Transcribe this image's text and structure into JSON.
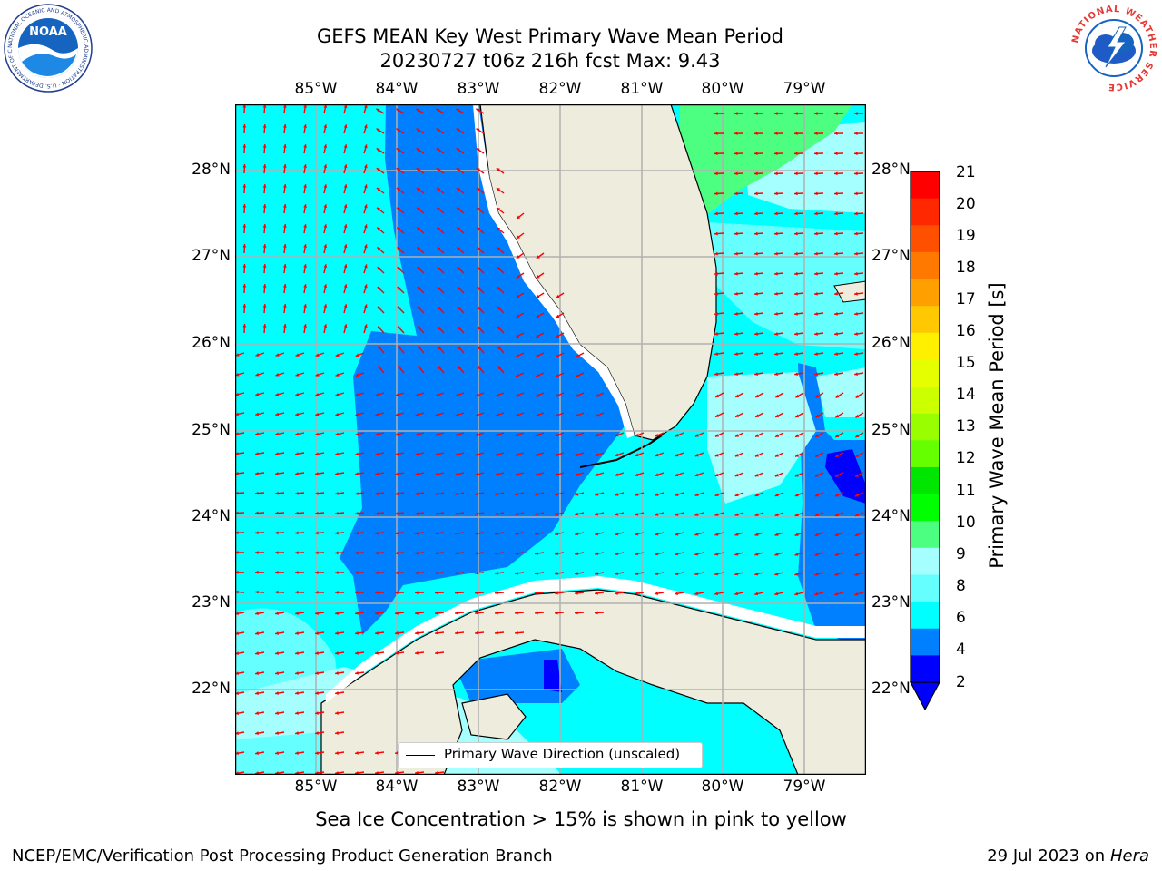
{
  "header": {
    "title_line1": "GEFS MEAN Key West Primary Wave Mean Period",
    "title_line2": "20230727 t06z 216h fcst   Max: 9.43"
  },
  "logos": {
    "noaa": {
      "inner_text": "NOAA",
      "ring_text": "NATIONAL OCEANIC AND ATMOSPHERIC ADMINISTRATION · U.S. DEPARTMENT OF COMMERCE"
    },
    "nws": {
      "ring_text": "NATIONAL WEATHER SERVICE"
    }
  },
  "map": {
    "lon_labels": [
      "85°W",
      "84°W",
      "83°W",
      "82°W",
      "81°W",
      "80°W",
      "79°W"
    ],
    "lat_labels": [
      "28°N",
      "27°N",
      "26°N",
      "25°N",
      "24°N",
      "23°N",
      "22°N"
    ],
    "legend_label": "Primary Wave Direction (unscaled)",
    "colors": {
      "land": "#eeecdc",
      "ocean_cyan": "#00ffff",
      "ocean_blue": "#0080ff",
      "ocean_light": "#80ffff",
      "ocean_pale": "#a6ffff",
      "green": "#4dff80",
      "arrow": "#ff0000"
    }
  },
  "colorbar": {
    "label": "Primary Wave Mean Period [s]",
    "ticks": [
      "21",
      "20",
      "19",
      "18",
      "17",
      "16",
      "15",
      "14",
      "13",
      "12",
      "11",
      "10",
      "9",
      "8",
      "6",
      "4",
      "2"
    ],
    "colors": [
      "#ff0000",
      "#ff2800",
      "#ff5000",
      "#ff7800",
      "#ffa000",
      "#ffc800",
      "#fff000",
      "#e6ff00",
      "#ccff00",
      "#99ff00",
      "#66ff00",
      "#00e600",
      "#00ff00",
      "#4dff80",
      "#a6ffff",
      "#66ffff",
      "#00ffff",
      "#0080ff",
      "#0000ff"
    ]
  },
  "footer": {
    "sea_ice_note": "Sea Ice Concentration > 15% is shown in pink to yellow",
    "producer": "NCEP/EMC/Verification Post Processing Product Generation Branch",
    "date": "29 Jul 2023 on",
    "machine": "Hera"
  }
}
